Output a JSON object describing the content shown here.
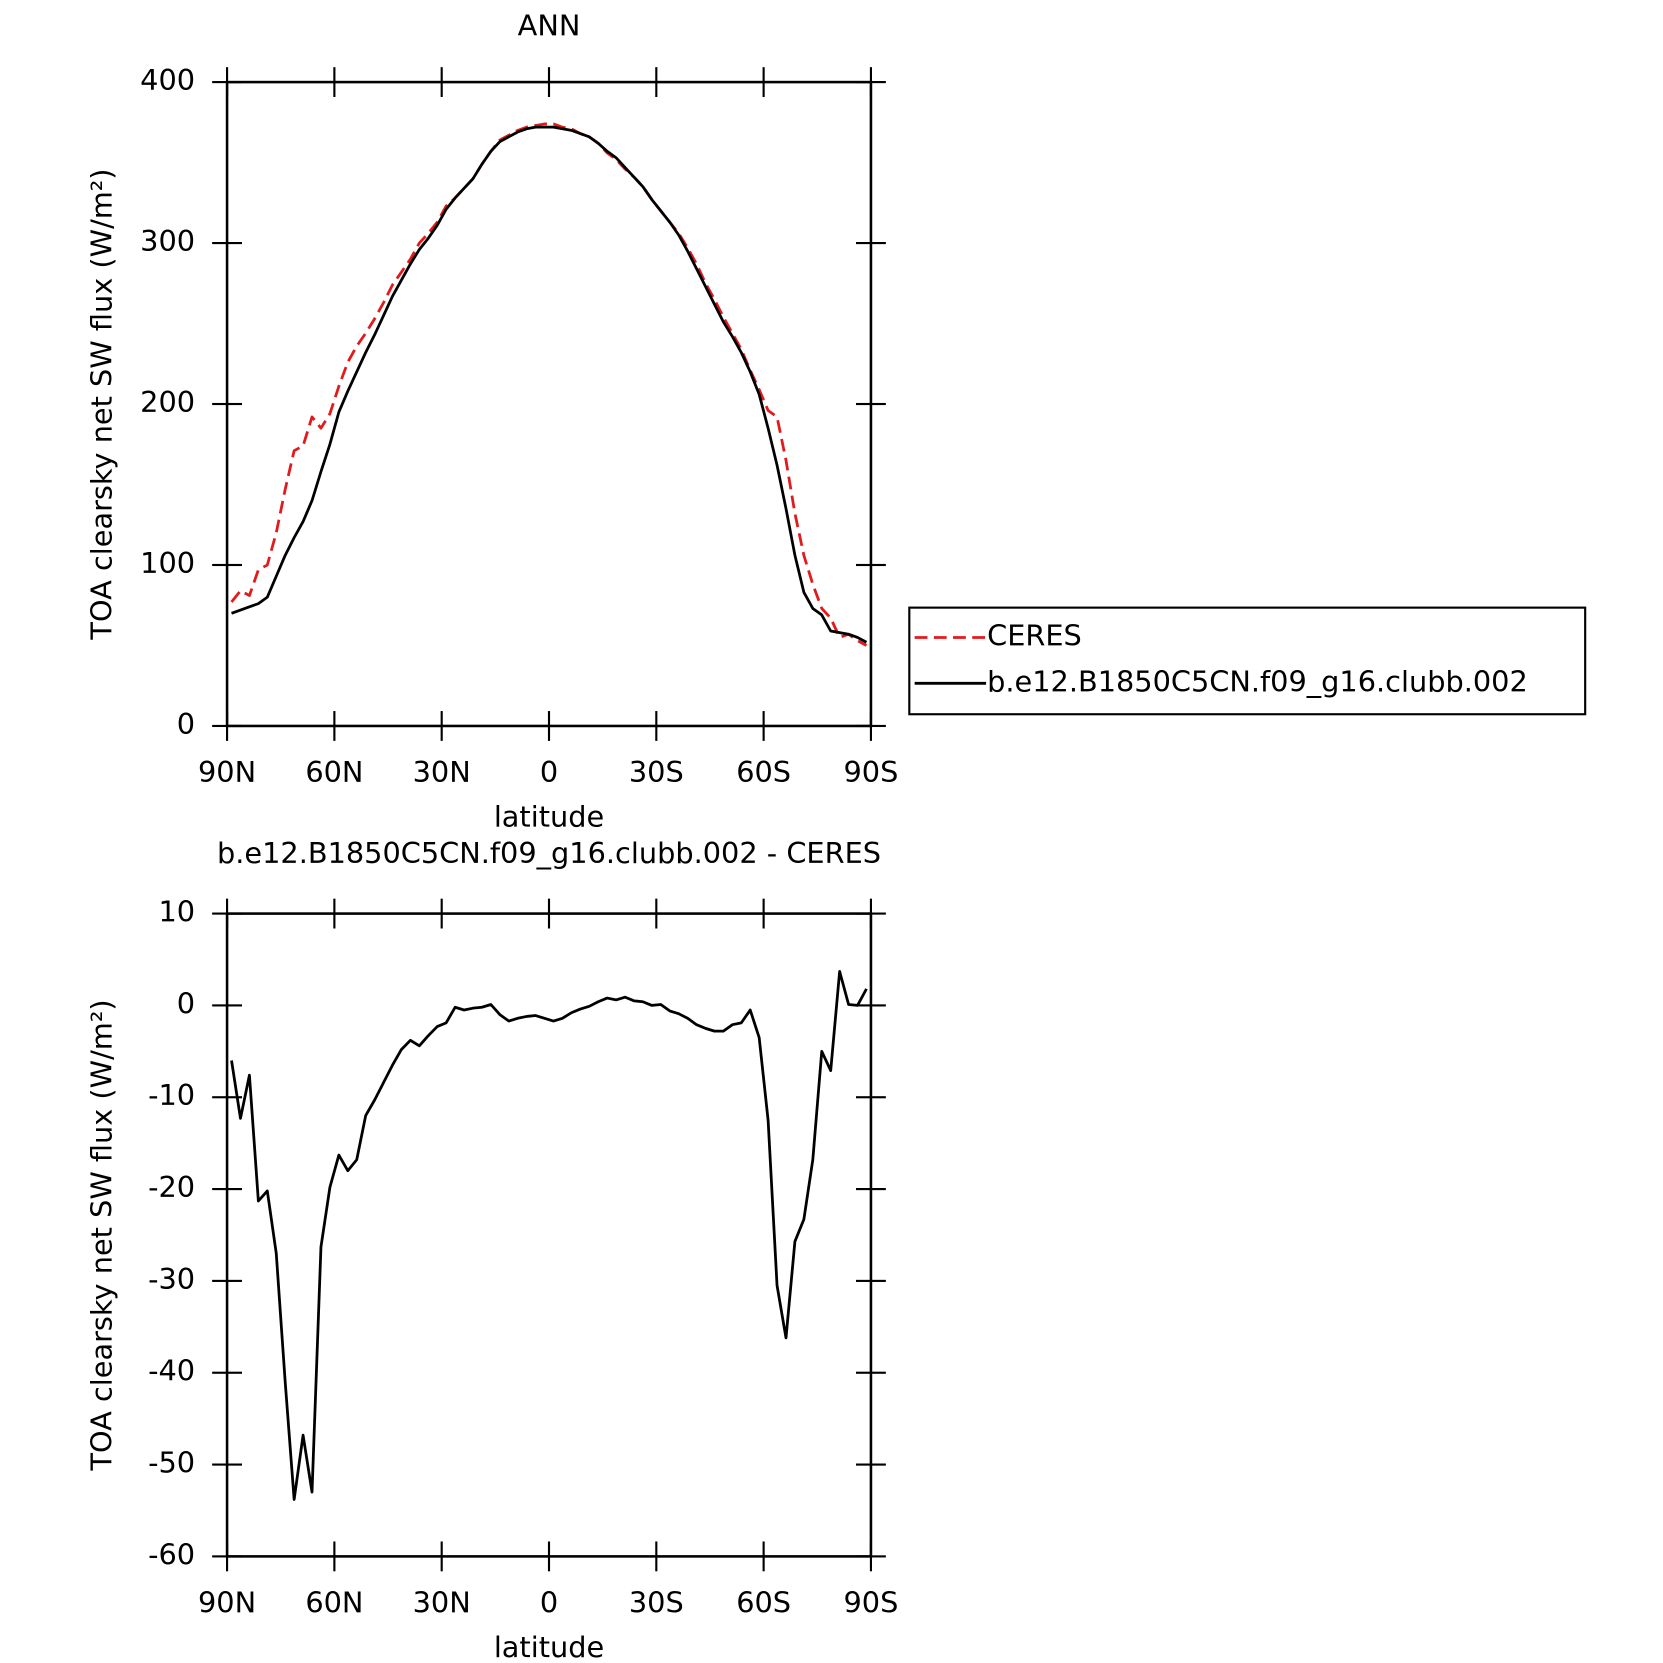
{
  "chart_data": [
    {
      "type": "line",
      "title": "ANN",
      "x_label": "latitude",
      "y_label": "TOA clearsky net SW flux (W/m²)",
      "x": [
        88.75,
        86.25,
        83.75,
        81.25,
        78.75,
        76.25,
        73.75,
        71.25,
        68.75,
        66.25,
        63.75,
        61.25,
        58.75,
        56.25,
        53.75,
        51.25,
        48.75,
        46.25,
        43.75,
        41.25,
        38.75,
        36.25,
        33.75,
        31.25,
        28.75,
        26.25,
        23.75,
        21.25,
        18.75,
        16.25,
        13.75,
        11.25,
        8.75,
        6.25,
        3.75,
        1.25,
        -1.25,
        -3.75,
        -6.25,
        -8.75,
        -11.25,
        -13.75,
        -16.25,
        -18.75,
        -21.25,
        -23.75,
        -26.25,
        -28.75,
        -31.25,
        -33.75,
        -36.25,
        -38.75,
        -41.25,
        -43.75,
        -46.25,
        -48.75,
        -51.25,
        -53.75,
        -56.25,
        -58.75,
        -61.25,
        -63.75,
        -66.25,
        -68.75,
        -71.25,
        -73.75,
        -76.25,
        -78.75,
        -81.25,
        -83.75,
        -86.25,
        -88.75
      ],
      "series": [
        {
          "name": "CERES",
          "color": "#e31a1c",
          "line_style": "dashed",
          "values": [
            77,
            84,
            81,
            97,
            100,
            120,
            147,
            171,
            174,
            192,
            185,
            194,
            211,
            226,
            236,
            244,
            253,
            263,
            274,
            282,
            290,
            300,
            306,
            313,
            323,
            328,
            334,
            340,
            349,
            357,
            364,
            367,
            370,
            372,
            373,
            374,
            374,
            372,
            371,
            368,
            366,
            362,
            356,
            352,
            346,
            341,
            335,
            327,
            320,
            313,
            306,
            297,
            287,
            275,
            265,
            254,
            244,
            234,
            221,
            209,
            196,
            192,
            165,
            132,
            106,
            88,
            73,
            67,
            55,
            57,
            53,
            50
          ]
        },
        {
          "name": "b.e12.B1850C5CN.f09_g16.clubb.002",
          "color": "#000000",
          "line_style": "solid",
          "values": [
            70,
            72,
            74,
            76,
            80,
            93,
            106,
            117,
            127,
            140,
            158,
            175,
            195,
            208,
            220,
            232,
            243,
            255,
            267,
            277,
            287,
            296,
            303,
            311,
            321,
            328,
            334,
            340,
            349,
            357,
            363,
            366,
            369,
            371,
            372,
            372,
            372,
            371,
            370,
            368,
            366,
            362,
            357,
            353,
            347,
            341,
            335,
            327,
            320,
            313,
            305,
            295,
            284,
            273,
            262,
            251,
            242,
            232,
            220,
            206,
            185,
            162,
            135,
            106,
            83,
            73,
            69,
            59,
            58,
            57,
            55,
            52
          ]
        }
      ],
      "xlim": [
        90,
        -90
      ],
      "xticks": [
        {
          "value": 90,
          "label": "90N"
        },
        {
          "value": 60,
          "label": "60N"
        },
        {
          "value": 30,
          "label": "30N"
        },
        0,
        {
          "value": -30,
          "label": "30S"
        },
        {
          "value": -60,
          "label": "60S"
        },
        {
          "value": -90,
          "label": "90S"
        }
      ],
      "ylim": [
        0,
        400
      ],
      "yticks": [
        0,
        100,
        200,
        300,
        400
      ],
      "grid": false,
      "legend": "right"
    },
    {
      "type": "line",
      "title": "b.e12.B1850C5CN.f09_g16.clubb.002 - CERES",
      "x_label": "latitude",
      "y_label": "TOA clearsky net SW flux (W/m²)",
      "x": [
        88.75,
        86.25,
        83.75,
        81.25,
        78.75,
        76.25,
        73.75,
        71.25,
        68.75,
        66.25,
        63.75,
        61.25,
        58.75,
        56.25,
        53.75,
        51.25,
        48.75,
        46.25,
        43.75,
        41.25,
        38.75,
        36.25,
        33.75,
        31.25,
        28.75,
        26.25,
        23.75,
        21.25,
        18.75,
        16.25,
        13.75,
        11.25,
        8.75,
        6.25,
        3.75,
        1.25,
        -1.25,
        -3.75,
        -6.25,
        -8.75,
        -11.25,
        -13.75,
        -16.25,
        -18.75,
        -21.25,
        -23.75,
        -26.25,
        -28.75,
        -31.25,
        -33.75,
        -36.25,
        -38.75,
        -41.25,
        -43.75,
        -46.25,
        -48.75,
        -51.25,
        -53.75,
        -56.25,
        -58.75,
        -61.25,
        -63.75,
        -66.25,
        -68.75,
        -71.25,
        -73.75,
        -76.25,
        -78.75,
        -81.25,
        -83.75,
        -86.25,
        -88.75
      ],
      "series": [
        {
          "color": "#000000",
          "line_style": "solid",
          "values": [
            -6,
            -12.3,
            -7.6,
            -21.3,
            -20.2,
            -27,
            -41,
            -53.8,
            -46.8,
            -53,
            -26.3,
            -19.8,
            -16.3,
            -18,
            -16.8,
            -12,
            -10.3,
            -8.4,
            -6.5,
            -4.8,
            -3.8,
            -4.4,
            -3.3,
            -2.3,
            -1.9,
            -0.2,
            -0.5,
            -0.3,
            -0.2,
            0.1,
            -1,
            -1.7,
            -1.4,
            -1.2,
            -1.1,
            -1.4,
            -1.7,
            -1.4,
            -0.8,
            -0.4,
            -0.1,
            0.4,
            0.8,
            0.6,
            0.9,
            0.5,
            0.4,
            0,
            0.1,
            -0.6,
            -0.9,
            -1.4,
            -2.1,
            -2.5,
            -2.8,
            -2.8,
            -2.1,
            -1.9,
            -0.5,
            -3.5,
            -12.5,
            -30.5,
            -36.2,
            -25.7,
            -23.3,
            -16.8,
            -5,
            -7.1,
            3.7,
            0.1,
            0,
            1.8
          ]
        }
      ],
      "xlim": [
        90,
        -90
      ],
      "xticks": [
        {
          "value": 90,
          "label": "90N"
        },
        {
          "value": 60,
          "label": "60N"
        },
        {
          "value": 30,
          "label": "30N"
        },
        0,
        {
          "value": -30,
          "label": "30S"
        },
        {
          "value": -60,
          "label": "60S"
        },
        {
          "value": -90,
          "label": "90S"
        }
      ],
      "ylim": [
        -60,
        10
      ],
      "yticks": [
        -60,
        -50,
        -40,
        -30,
        -20,
        -10,
        0,
        10
      ],
      "grid": false
    }
  ]
}
